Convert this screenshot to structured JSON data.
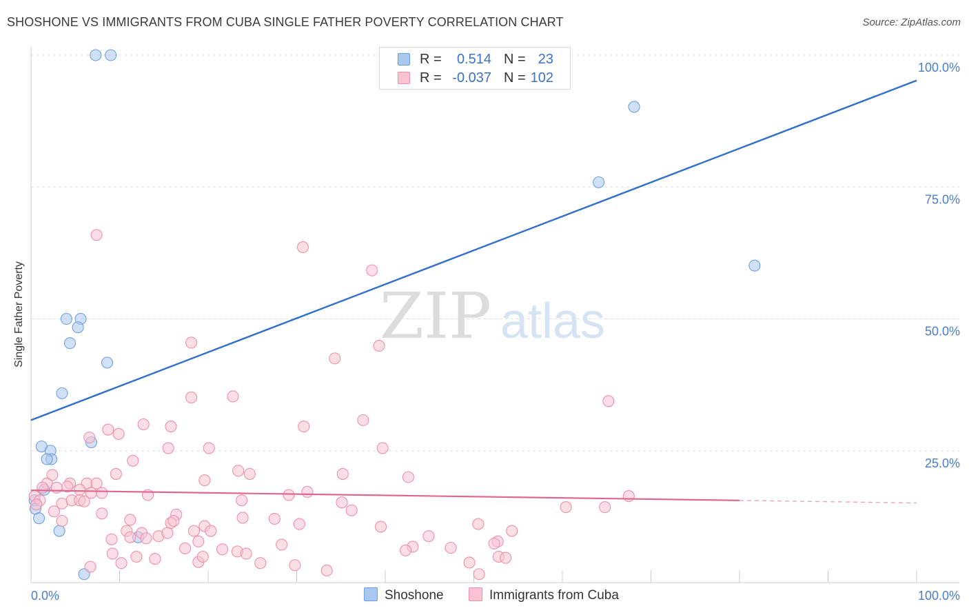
{
  "header": {
    "title": "SHOSHONE VS IMMIGRANTS FROM CUBA SINGLE FATHER POVERTY CORRELATION CHART",
    "source": "Source: ZipAtlas.com"
  },
  "watermark": {
    "zip": "ZIP",
    "atlas": "atlas"
  },
  "legend": {
    "rows": [
      {
        "r_label": "R =",
        "r_value": "0.514",
        "n_label": "N =",
        "n_value": "23",
        "color": "#a9c8f0",
        "stroke": "#6f9fd8"
      },
      {
        "r_label": "R =",
        "r_value": "-0.037",
        "n_label": "N =",
        "n_value": "102",
        "color": "#f9c3d3",
        "stroke": "#ec8fab"
      }
    ],
    "bottom": [
      {
        "label": "Shoshone",
        "color": "#a9c8f0",
        "stroke": "#6f9fd8"
      },
      {
        "label": "Immigrants from Cuba",
        "color": "#f9c3d3",
        "stroke": "#ec8fab"
      }
    ]
  },
  "chart_data": {
    "type": "scatter",
    "title": "SHOSHONE VS IMMIGRANTS FROM CUBA SINGLE FATHER POVERTY CORRELATION CHART",
    "xlabel": "",
    "ylabel": "Single Father Poverty",
    "xlim": [
      0,
      100
    ],
    "ylim": [
      0,
      100
    ],
    "x_tick_labels": [
      "0.0%",
      "100.0%"
    ],
    "y_tick_labels": [
      {
        "value": 100,
        "label": "100.0%"
      },
      {
        "value": 75,
        "label": "75.0%"
      },
      {
        "value": 50,
        "label": "50.0%"
      },
      {
        "value": 25,
        "label": "25.0%"
      }
    ],
    "grid": true,
    "series": [
      {
        "name": "Shoshone",
        "color": "#a9c8f0",
        "stroke": "#6f9fd8",
        "line_color": "#2f6fc9",
        "trend": {
          "x0": 0,
          "y0": 30.8,
          "x1": 100,
          "y1": 95.2,
          "dashed_from": null
        },
        "points": [
          [
            7.3,
            100
          ],
          [
            9.0,
            100
          ],
          [
            68.1,
            90.2
          ],
          [
            64.1,
            75.9
          ],
          [
            81.7,
            60.1
          ],
          [
            4.0,
            50.0
          ],
          [
            5.6,
            50.0
          ],
          [
            5.3,
            48.4
          ],
          [
            4.4,
            45.4
          ],
          [
            8.6,
            41.7
          ],
          [
            3.5,
            35.9
          ],
          [
            6.8,
            26.6
          ],
          [
            1.2,
            25.8
          ],
          [
            2.2,
            25.0
          ],
          [
            2.3,
            23.4
          ],
          [
            1.8,
            23.4
          ],
          [
            1.5,
            17.6
          ],
          [
            0.4,
            15.6
          ],
          [
            0.5,
            14.0
          ],
          [
            0.9,
            12.2
          ],
          [
            3.2,
            9.8
          ],
          [
            12.1,
            8.6
          ],
          [
            6.0,
            1.6
          ]
        ]
      },
      {
        "name": "Immigrants from Cuba",
        "color": "#f9c3d3",
        "stroke": "#ec8fab",
        "line_color": "#e06690",
        "trend": {
          "x0": 0,
          "y0": 17.5,
          "x1": 100,
          "y1": 15.1,
          "dashed_from": 80
        },
        "points": [
          [
            7.4,
            65.9
          ],
          [
            30.7,
            63.6
          ],
          [
            38.5,
            59.2
          ],
          [
            18.1,
            45.5
          ],
          [
            39.3,
            44.9
          ],
          [
            34.3,
            42.5
          ],
          [
            65.2,
            34.4
          ],
          [
            18.1,
            35.1
          ],
          [
            22.8,
            35.3
          ],
          [
            37.5,
            30.8
          ],
          [
            12.7,
            30.0
          ],
          [
            15.8,
            29.6
          ],
          [
            30.8,
            29.6
          ],
          [
            8.7,
            29.0
          ],
          [
            9.9,
            28.2
          ],
          [
            6.6,
            27.5
          ],
          [
            15.5,
            25.5
          ],
          [
            20.1,
            25.5
          ],
          [
            39.7,
            25.5
          ],
          [
            11.5,
            23.1
          ],
          [
            2.4,
            20.4
          ],
          [
            9.6,
            20.6
          ],
          [
            23.4,
            21.2
          ],
          [
            24.7,
            20.6
          ],
          [
            35.2,
            20.6
          ],
          [
            42.6,
            20.0
          ],
          [
            19.6,
            19.4
          ],
          [
            1.8,
            18.8
          ],
          [
            4.4,
            18.8
          ],
          [
            6.3,
            18.8
          ],
          [
            7.4,
            18.8
          ],
          [
            1.3,
            18.0
          ],
          [
            2.9,
            18.0
          ],
          [
            4.1,
            18.2
          ],
          [
            5.5,
            17.6
          ],
          [
            6.8,
            17.0
          ],
          [
            8.0,
            17.0
          ],
          [
            13.2,
            16.6
          ],
          [
            29.1,
            16.6
          ],
          [
            31.2,
            17.2
          ],
          [
            67.5,
            16.4
          ],
          [
            0.4,
            16.4
          ],
          [
            1.0,
            15.6
          ],
          [
            0.6,
            14.8
          ],
          [
            3.5,
            15.0
          ],
          [
            4.6,
            15.6
          ],
          [
            5.5,
            15.6
          ],
          [
            6.0,
            15.4
          ],
          [
            23.8,
            15.6
          ],
          [
            35.1,
            15.2
          ],
          [
            2.6,
            13.5
          ],
          [
            8.0,
            13.1
          ],
          [
            16.4,
            12.9
          ],
          [
            36.2,
            13.7
          ],
          [
            60.4,
            14.3
          ],
          [
            64.8,
            14.3
          ],
          [
            3.5,
            11.7
          ],
          [
            11.2,
            11.9
          ],
          [
            15.8,
            11.3
          ],
          [
            16.1,
            11.7
          ],
          [
            23.9,
            12.3
          ],
          [
            27.5,
            12.1
          ],
          [
            30.3,
            11.1
          ],
          [
            50.5,
            11.1
          ],
          [
            19.6,
            10.7
          ],
          [
            39.5,
            10.6
          ],
          [
            10.8,
            9.8
          ],
          [
            12.5,
            9.4
          ],
          [
            18.4,
            9.8
          ],
          [
            20.3,
            9.8
          ],
          [
            54.3,
            9.8
          ],
          [
            11.2,
            8.6
          ],
          [
            13.0,
            8.4
          ],
          [
            14.4,
            8.8
          ],
          [
            15.4,
            9.4
          ],
          [
            44.9,
            8.8
          ],
          [
            9.1,
            8.2
          ],
          [
            18.9,
            7.8
          ],
          [
            28.3,
            7.2
          ],
          [
            43.1,
            6.8
          ],
          [
            47.4,
            6.6
          ],
          [
            52.7,
            7.8
          ],
          [
            52.3,
            7.4
          ],
          [
            9.2,
            5.5
          ],
          [
            17.4,
            6.5
          ],
          [
            21.6,
            6.3
          ],
          [
            23.3,
            5.9
          ],
          [
            24.3,
            5.5
          ],
          [
            11.9,
            4.9
          ],
          [
            14.0,
            4.5
          ],
          [
            42.3,
            6.1
          ],
          [
            52.8,
            4.9
          ],
          [
            53.6,
            4.7
          ],
          [
            10.2,
            3.7
          ],
          [
            18.9,
            3.9
          ],
          [
            25.9,
            3.7
          ],
          [
            29.8,
            3.3
          ],
          [
            49.5,
            3.8
          ],
          [
            33.4,
            2.3
          ],
          [
            50.6,
            1.6
          ],
          [
            6.7,
            3.0
          ],
          [
            19.4,
            4.9
          ]
        ]
      }
    ]
  }
}
